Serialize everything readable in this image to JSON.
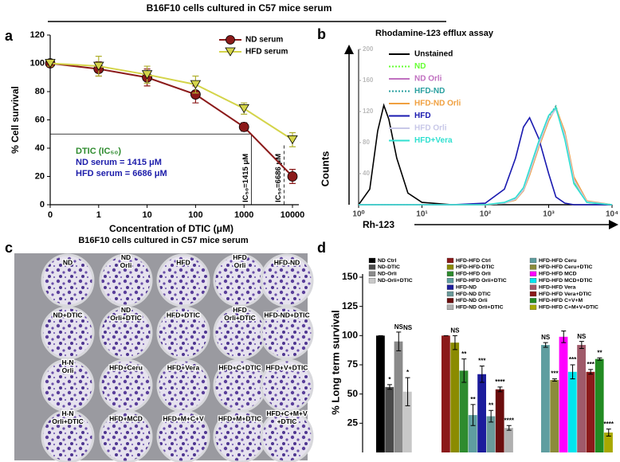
{
  "title": "B16F10 cells cultured in C57 mice serum",
  "chart_data": [
    {
      "type": "line",
      "panel": "a",
      "x_label": "Concentration of DTIC (μM)",
      "y_label": "% Cell survival",
      "categories": [
        "0",
        "1",
        "10",
        "100",
        "1000",
        "10000"
      ],
      "ylim": [
        0,
        120
      ],
      "yticks": [
        0,
        20,
        40,
        60,
        80,
        100,
        120
      ],
      "series": [
        {
          "name": "ND serum",
          "color": "#8b1a1a",
          "marker": "circle",
          "values": [
            100,
            96,
            90,
            78,
            55,
            20
          ],
          "errors": [
            1,
            5,
            6,
            6,
            3,
            5
          ]
        },
        {
          "name": "HFD serum",
          "color": "#d4d44a",
          "marker": "triangle-down",
          "values": [
            100,
            98,
            92,
            85,
            68,
            46
          ],
          "errors": [
            2,
            7,
            6,
            6,
            4,
            5
          ]
        }
      ],
      "hline": 50,
      "ic50": [
        {
          "x": 1415,
          "label": "IC₅₀=1415 μM",
          "dash": false
        },
        {
          "x": 6686,
          "label": "IC₅₀=6686 μM",
          "dash": true
        }
      ],
      "annotations": [
        {
          "text": "DTIC (IC₅₀)",
          "color": "#2e8b2e"
        },
        {
          "text": "ND serum = 1415 μM",
          "color": "#1c1caa"
        },
        {
          "text": "HFD serum = 6686 μM",
          "color": "#1c1caa"
        }
      ]
    },
    {
      "type": "histogram-line",
      "panel": "b",
      "title": "Rhodamine-123 efflux assay",
      "x_label": "Rh-123",
      "y_label": "Counts",
      "xscale": "log",
      "xlim": [
        1,
        10000
      ],
      "xticks": [
        {
          "value": 1,
          "label": "10⁰"
        },
        {
          "value": 10,
          "label": "10¹"
        },
        {
          "value": 100,
          "label": "10²"
        },
        {
          "value": 1000,
          "label": "10³"
        },
        {
          "value": 10000,
          "label": "10⁴"
        }
      ],
      "ylim": [
        0,
        200
      ],
      "yticks": [
        40,
        80,
        120,
        160,
        200
      ],
      "x": [
        1,
        1.5,
        2,
        2.5,
        3,
        4,
        6,
        10,
        30,
        100,
        200,
        300,
        400,
        500,
        700,
        1000,
        1300,
        1800,
        2500,
        4000,
        10000
      ],
      "series": [
        {
          "name": "Unstained",
          "color": "#000000",
          "values": [
            0,
            20,
            95,
            128,
            110,
            60,
            15,
            3,
            0,
            0,
            0,
            0,
            0,
            0,
            0,
            0,
            0,
            0,
            0,
            0,
            0
          ]
        },
        {
          "name": "ND",
          "color": "#66ff33",
          "dash": true,
          "values": [
            0,
            0,
            0,
            0,
            0,
            0,
            0,
            0,
            0,
            0,
            2,
            8,
            20,
            42,
            78,
            112,
            126,
            88,
            30,
            3,
            0
          ]
        },
        {
          "name": "ND Orli",
          "color": "#c070c0",
          "values": [
            0,
            0,
            0,
            0,
            0,
            0,
            0,
            0,
            0,
            0,
            2,
            7,
            18,
            40,
            76,
            110,
            124,
            92,
            34,
            4,
            0
          ]
        },
        {
          "name": "HFD-ND",
          "color": "#2aa0a0",
          "dash": true,
          "values": [
            0,
            0,
            0,
            0,
            0,
            0,
            0,
            0,
            0,
            0,
            2,
            8,
            21,
            44,
            80,
            114,
            127,
            86,
            28,
            3,
            0
          ]
        },
        {
          "name": "HFD-ND Orli",
          "color": "#f0a040",
          "values": [
            0,
            0,
            0,
            0,
            0,
            0,
            0,
            0,
            0,
            0,
            2,
            6,
            18,
            38,
            74,
            108,
            125,
            94,
            36,
            5,
            0
          ]
        },
        {
          "name": "HFD",
          "color": "#1a1ab0",
          "values": [
            0,
            0,
            0,
            0,
            0,
            0,
            0,
            0,
            0,
            2,
            20,
            60,
            100,
            112,
            85,
            40,
            10,
            2,
            0,
            0,
            0
          ]
        },
        {
          "name": "HFD Orli",
          "color": "#c8c8e8",
          "values": [
            0,
            0,
            0,
            0,
            0,
            0,
            0,
            0,
            0,
            0,
            2,
            7,
            19,
            41,
            77,
            111,
            123,
            90,
            32,
            4,
            0
          ]
        },
        {
          "name": "HFD+Vera",
          "color": "#30e0d0",
          "values": [
            0,
            0,
            0,
            0,
            0,
            0,
            0,
            0,
            0,
            0,
            3,
            9,
            22,
            46,
            82,
            115,
            125,
            84,
            27,
            3,
            0
          ]
        }
      ]
    },
    {
      "type": "bar",
      "panel": "d",
      "y_label": "% Long term survival",
      "ylim": [
        0,
        150
      ],
      "yticks": [
        25,
        50,
        75,
        100,
        125,
        150
      ],
      "series": [
        {
          "name": "ND Ctrl",
          "color": "#000000",
          "group": 0,
          "values": [
            100
          ],
          "errors": [
            0
          ]
        },
        {
          "name": "ND-DTIC",
          "color": "#4a4a4a",
          "group": 0,
          "values": [
            56
          ],
          "errors": [
            2
          ],
          "annotations": [
            "*"
          ]
        },
        {
          "name": "ND-Orli",
          "color": "#8a8a8a",
          "group": 0,
          "values": [
            95
          ],
          "errors": [
            8
          ],
          "annotations": [
            "NS"
          ]
        },
        {
          "name": "ND-Orli+DTIC",
          "color": "#c8c8c8",
          "group": 0,
          "values": [
            52
          ],
          "errors": [
            12
          ],
          "annotations": [
            "*",
            "NS"
          ]
        },
        {
          "name": "HFD-HFD Ctrl",
          "color": "#8b1a1a",
          "group": 1,
          "values": [
            100
          ],
          "errors": [
            0
          ]
        },
        {
          "name": "HFD-HFD-DTIC",
          "color": "#8b8b00",
          "group": 1,
          "values": [
            94
          ],
          "errors": [
            6
          ],
          "annotations": [
            "NS"
          ]
        },
        {
          "name": "HFD-HFD Orli",
          "color": "#2e8b2e",
          "group": 1,
          "values": [
            70
          ],
          "errors": [
            10
          ],
          "annotations": [
            "**"
          ]
        },
        {
          "name": "HFD-HFD Orli+DTIC",
          "color": "#5f9ea0",
          "group": 1,
          "values": [
            32
          ],
          "errors": [
            9
          ],
          "annotations": [
            "**"
          ]
        },
        {
          "name": "HFD-ND",
          "color": "#1c1c9c",
          "group": 1,
          "values": [
            67
          ],
          "errors": [
            7
          ],
          "annotations": [
            "***"
          ]
        },
        {
          "name": "HFD-ND DTIC",
          "color": "#6a9a9a",
          "group": 1,
          "values": [
            31
          ],
          "errors": [
            5
          ],
          "annotations": [
            "**"
          ]
        },
        {
          "name": "HFD-ND Orli",
          "color": "#6b0d0d",
          "group": 1,
          "values": [
            54
          ],
          "errors": [
            2
          ],
          "annotations": [
            "****"
          ]
        },
        {
          "name": "HFD-ND Orli+DTIC",
          "color": "#b0b0b0",
          "group": 1,
          "values": [
            21
          ],
          "errors": [
            2
          ],
          "annotations": [
            "****"
          ]
        },
        {
          "name": "HFD-HFD Ceru",
          "color": "#5f9ea0",
          "group": 2,
          "values": [
            92
          ],
          "errors": [
            2
          ],
          "annotations": [
            "NS"
          ]
        },
        {
          "name": "HFD-HFD Ceru+DTIC",
          "color": "#8b8b3a",
          "group": 2,
          "values": [
            62
          ],
          "errors": [
            1
          ],
          "annotations": [
            "***"
          ]
        },
        {
          "name": "HFD-HFD MCD",
          "color": "#ff00ff",
          "group": 2,
          "values": [
            99
          ],
          "errors": [
            5
          ]
        },
        {
          "name": "HFD-HFD MCD+DTIC",
          "color": "#00e5ee",
          "group": 2,
          "values": [
            69
          ],
          "errors": [
            6
          ],
          "annotations": [
            "***"
          ]
        },
        {
          "name": "HFD-HFD Vera",
          "color": "#a05a6a",
          "group": 2,
          "values": [
            92
          ],
          "errors": [
            3
          ],
          "annotations": [
            "NS"
          ]
        },
        {
          "name": "HFD-HFD Vera+DTIC",
          "color": "#8b1a1a",
          "group": 2,
          "values": [
            69
          ],
          "errors": [
            2
          ],
          "annotations": [
            "***"
          ]
        },
        {
          "name": "HFD-HFD C+V+M",
          "color": "#228b22",
          "group": 2,
          "values": [
            80
          ],
          "errors": [
            1
          ],
          "annotations": [
            "**"
          ]
        },
        {
          "name": "HFD-HFD C+M+V+DTIC",
          "color": "#a8a800",
          "group": 2,
          "values": [
            17
          ],
          "errors": [
            3
          ],
          "annotations": [
            "****"
          ]
        }
      ]
    }
  ],
  "plate": {
    "panel": "c",
    "title": "B16F10 cells cultured in C57 mice serum",
    "wells": [
      [
        "ND",
        "ND Orli",
        "HFD",
        "HFD Orli",
        "HFD-ND"
      ],
      [
        "ND+DTIC",
        "ND Orli+DTIC",
        "HFD+DTIC",
        "HFD Orli+DTIC",
        "HFD-ND+DTIC"
      ],
      [
        "H-N Orli",
        "HFD+Ceru",
        "HFD+Vera",
        "HFD+C+DTIC",
        "HFD+V+DTIC"
      ],
      [
        "H-N Orli+DTIC",
        "HFD+MCD",
        "HFD+M+C+V",
        "HFD+M+DTIC",
        "HFD+C+M+V +DTIC"
      ]
    ]
  }
}
